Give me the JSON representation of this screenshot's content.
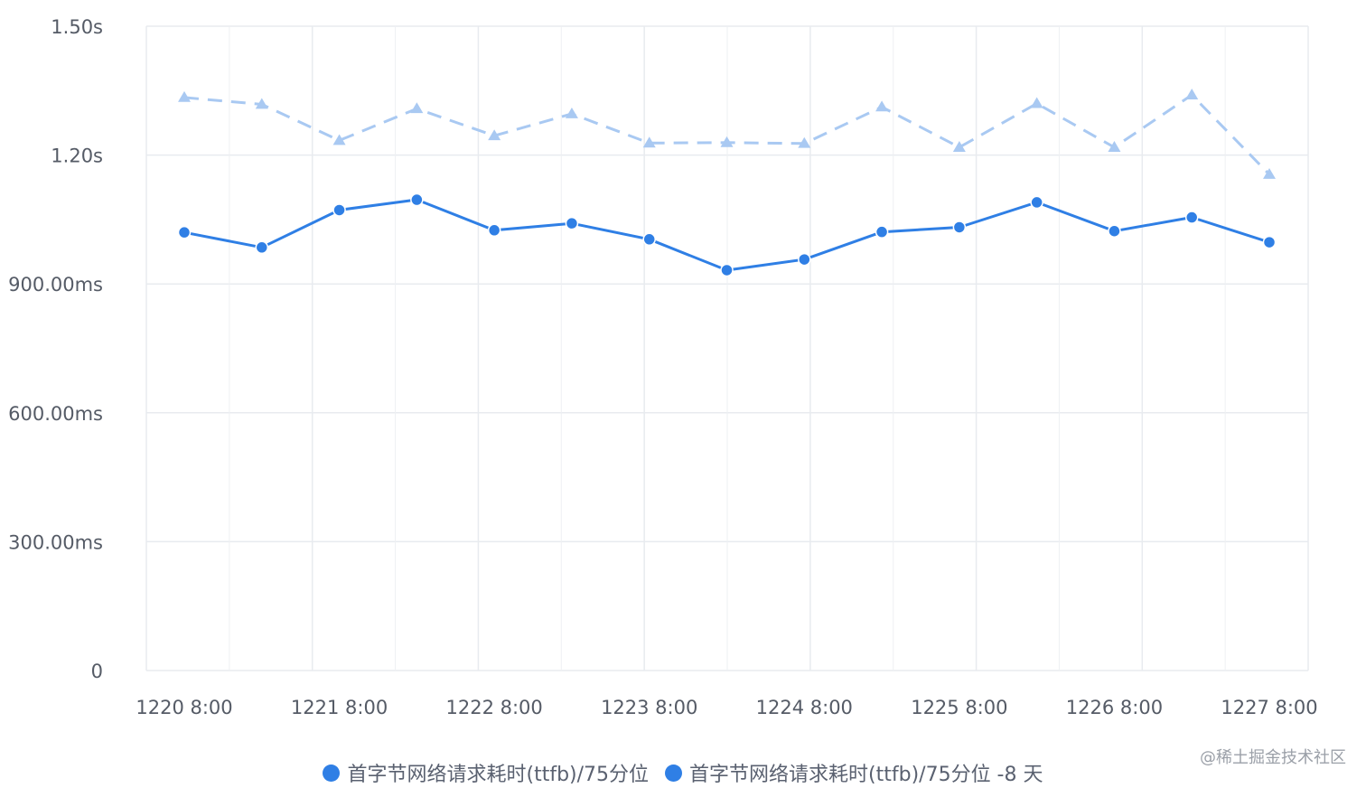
{
  "chart_data": {
    "type": "line",
    "categories": [
      "1220 8:00",
      "",
      "1221 8:00",
      "",
      "1222 8:00",
      "",
      "1223 8:00",
      "",
      "1224 8:00",
      "",
      "1225 8:00",
      "",
      "1226 8:00",
      "",
      "1227 8:00"
    ],
    "x_tick_labels": [
      "1220 8:00",
      "1221 8:00",
      "1222 8:00",
      "1223 8:00",
      "1224 8:00",
      "1225 8:00",
      "1226 8:00",
      "1227 8:00"
    ],
    "y_tick_labels": [
      "0",
      "300.00ms",
      "600.00ms",
      "900.00ms",
      "1.20s",
      "1.50s"
    ],
    "ylim": [
      0,
      1500
    ],
    "grid": true,
    "legend_position": "bottom-center",
    "series": [
      {
        "name": "首字节网络请求耗时(ttfb)/75分位",
        "style": "solid",
        "marker": "circle",
        "color": "#2f7fe5",
        "values": [
          1020,
          985,
          1072,
          1096,
          1025,
          1041,
          1004,
          932,
          957,
          1021,
          1032,
          1090,
          1023,
          1055,
          997
        ]
      },
      {
        "name": "首字节网络请求耗时(ttfb)/75分位 -8 天",
        "style": "dashed",
        "marker": "triangle",
        "color": "#a9c9f2",
        "values": [
          1334,
          1318,
          1234,
          1308,
          1245,
          1296,
          1228,
          1229,
          1227,
          1312,
          1218,
          1320,
          1218,
          1340,
          1155
        ]
      }
    ]
  },
  "legend": {
    "items": [
      {
        "label": "首字节网络请求耗时(ttfb)/75分位",
        "color": "#2f7fe5"
      },
      {
        "label": "首字节网络请求耗时(ttfb)/75分位 -8 天",
        "color": "#2f7fe5"
      }
    ]
  },
  "watermark": "@稀土掘金技术社区"
}
